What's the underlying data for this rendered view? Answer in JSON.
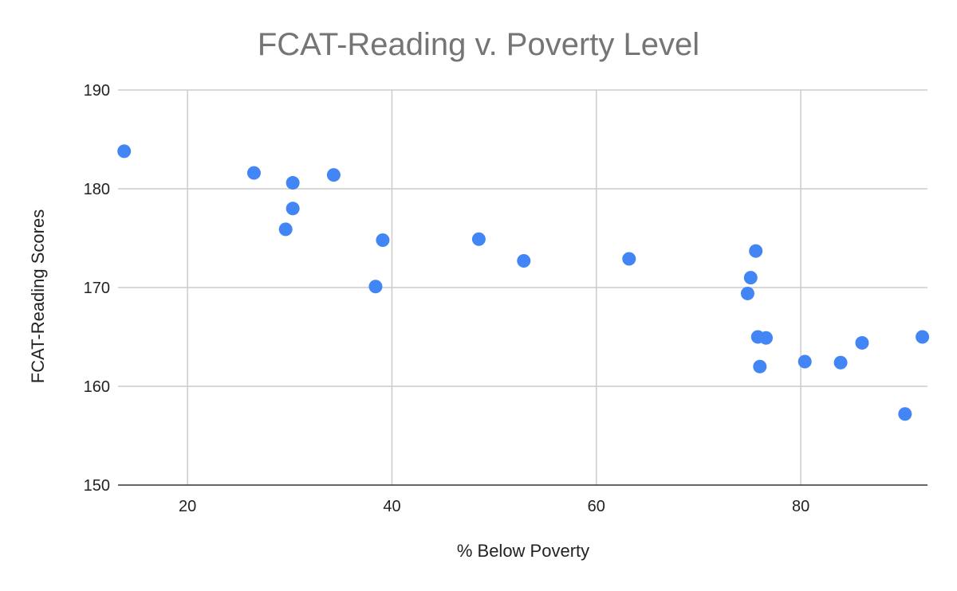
{
  "chart_data": {
    "type": "scatter",
    "title": "FCAT-Reading v. Poverty Level",
    "xlabel": "% Below Poverty",
    "ylabel": "FCAT-Reading Scores",
    "xlim": [
      13.2,
      92.4
    ],
    "ylim": [
      150,
      190
    ],
    "xticks": [
      20,
      40,
      60,
      80
    ],
    "yticks": [
      150,
      160,
      170,
      180,
      190
    ],
    "grid": true,
    "legend": "none",
    "series": [
      {
        "color": "#4285F4",
        "points": [
          {
            "x": 13.8,
            "y": 183.8
          },
          {
            "x": 26.5,
            "y": 181.6
          },
          {
            "x": 30.3,
            "y": 180.6
          },
          {
            "x": 34.3,
            "y": 181.4
          },
          {
            "x": 30.3,
            "y": 178.0
          },
          {
            "x": 29.6,
            "y": 175.9
          },
          {
            "x": 39.1,
            "y": 174.8
          },
          {
            "x": 38.4,
            "y": 170.1
          },
          {
            "x": 48.5,
            "y": 174.9
          },
          {
            "x": 52.9,
            "y": 172.7
          },
          {
            "x": 63.2,
            "y": 172.9
          },
          {
            "x": 75.6,
            "y": 173.7
          },
          {
            "x": 75.1,
            "y": 171.0
          },
          {
            "x": 74.8,
            "y": 169.4
          },
          {
            "x": 75.8,
            "y": 165.0
          },
          {
            "x": 76.6,
            "y": 164.9
          },
          {
            "x": 76.0,
            "y": 162.0
          },
          {
            "x": 80.4,
            "y": 162.5
          },
          {
            "x": 83.9,
            "y": 162.4
          },
          {
            "x": 86.0,
            "y": 164.4
          },
          {
            "x": 90.2,
            "y": 157.2
          },
          {
            "x": 91.9,
            "y": 165.0
          }
        ]
      }
    ]
  }
}
